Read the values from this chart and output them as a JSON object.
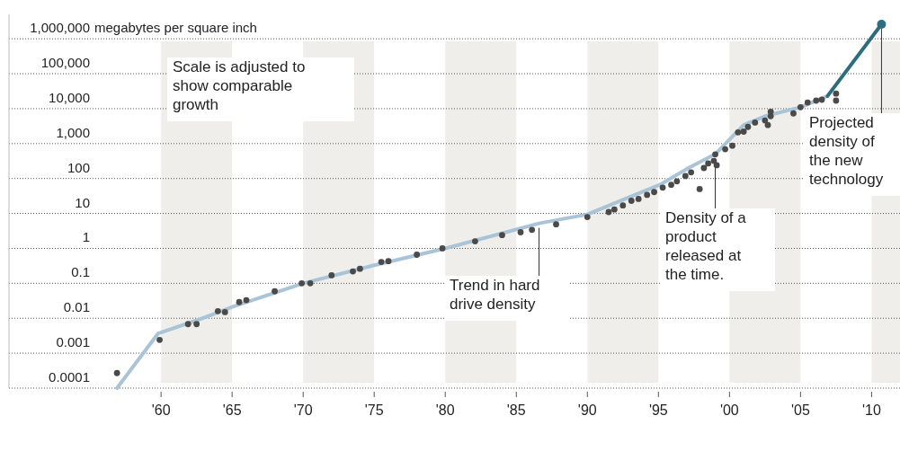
{
  "chart_data": {
    "type": "scatter",
    "ylabel": "megabytes per square inch",
    "xlim": [
      1949.3,
      2012
    ],
    "ylim": [
      0.0001,
      5000000
    ],
    "log": "y",
    "grid": "y",
    "marker": "circle",
    "xticks": [
      {
        "value": 1960,
        "label": "'60"
      },
      {
        "value": 1965,
        "label": "'65"
      },
      {
        "value": 1970,
        "label": "'70"
      },
      {
        "value": 1975,
        "label": "'75"
      },
      {
        "value": 1980,
        "label": "'80"
      },
      {
        "value": 1985,
        "label": "'85"
      },
      {
        "value": 1990,
        "label": "'90"
      },
      {
        "value": 1995,
        "label": "'95"
      },
      {
        "value": 2000,
        "label": "'00"
      },
      {
        "value": 2005,
        "label": "'05"
      },
      {
        "value": 2010,
        "label": "'10"
      }
    ],
    "yticks": [
      {
        "value": 0.0001,
        "label": "0.0001"
      },
      {
        "value": 0.001,
        "label": "0.001"
      },
      {
        "value": 0.01,
        "label": "0.01"
      },
      {
        "value": 0.1,
        "label": "0.1"
      },
      {
        "value": 1,
        "label": "1"
      },
      {
        "value": 10,
        "label": "10"
      },
      {
        "value": 100,
        "label": "100"
      },
      {
        "value": 1000,
        "label": "1,000"
      },
      {
        "value": 10000,
        "label": "10,000"
      },
      {
        "value": 100000,
        "label": "100,000"
      },
      {
        "value": 1000000,
        "label": "1,000,000"
      }
    ],
    "bands": [
      {
        "axis": "x",
        "from": 1960,
        "to": 1965,
        "color": "#efeeea"
      },
      {
        "axis": "x",
        "from": 1970,
        "to": 1975,
        "color": "#efeeea"
      },
      {
        "axis": "x",
        "from": 1980,
        "to": 1985,
        "color": "#efeeea"
      },
      {
        "axis": "x",
        "from": 1990,
        "to": 1995,
        "color": "#efeeea"
      },
      {
        "axis": "x",
        "from": 2000,
        "to": 2005,
        "color": "#efeeea"
      },
      {
        "axis": "x",
        "from": 2010,
        "to": 2012,
        "color": "#efeeea"
      }
    ],
    "series": [
      {
        "type": "line",
        "color": "#a9c4d6",
        "marker": "none",
        "x": [
          1956.9,
          1959.8,
          1962.6,
          1965,
          1970,
          1975,
          1980,
          1986.6,
          1990,
          1993,
          1995.1,
          1997.2,
          1999,
          2001,
          2002.5,
          2005,
          2006.9
        ],
        "values": [
          0.0001,
          0.0037,
          0.009,
          0.021,
          0.1,
          0.33,
          1,
          5.2,
          9.4,
          30,
          66,
          210,
          500,
          3400,
          6100,
          11000,
          23000
        ]
      },
      {
        "type": "line",
        "color": "#2c6e80",
        "marker": "none",
        "x": [
          2006.9,
          2010.7
        ],
        "values": [
          23000,
          2600000
        ]
      },
      {
        "color": "#4a4a4a",
        "x": [
          1956.9,
          1959.9,
          1961.9,
          1962.5,
          1964,
          1964.5,
          1965.5,
          1966,
          1968,
          1969.9,
          1970.5,
          1972,
          1973.5,
          1974,
          1975.5,
          1976,
          1978,
          1979.8,
          1982.1,
          1984,
          1985.3,
          1986.1,
          1987.8,
          1990,
          1991.5,
          1991.9,
          1992.5,
          1993.1,
          1993.6,
          1994.2,
          1994.7,
          1995.3,
          1995.9,
          1996.3,
          1996.9,
          1997.3,
          1997.9,
          1998.2,
          1998.5,
          1998.9,
          1999,
          1999.1,
          1999.7,
          2000.2,
          2000.6,
          2001,
          2001.3,
          2001.8,
          2002.5,
          2002.7,
          2002.9,
          2002.9,
          2004.5,
          2005,
          2005.5,
          2006.1,
          2006.5,
          2007.5,
          2007.5
        ],
        "values": [
          0.00027,
          0.0024,
          0.0068,
          0.0068,
          0.016,
          0.015,
          0.029,
          0.033,
          0.059,
          0.1,
          0.1,
          0.17,
          0.22,
          0.26,
          0.41,
          0.43,
          0.66,
          1,
          1.6,
          2.4,
          2.9,
          3.4,
          4.9,
          7.9,
          11,
          13,
          17,
          23,
          26,
          34,
          41,
          55,
          66,
          83,
          118,
          150,
          50,
          200,
          270,
          320,
          490,
          240,
          690,
          870,
          2100,
          2200,
          3000,
          4000,
          4600,
          3400,
          8200,
          6100,
          7300,
          11000,
          15000,
          17000,
          18000,
          27000,
          17000
        ]
      },
      {
        "color": "#2c6e80",
        "x": [
          2010.7
        ],
        "values": [
          2600000
        ]
      }
    ],
    "annotations": [
      "Scale is adjusted to show comparable growth",
      {
        "text": "Trend in hard drive density",
        "x": 1986.6,
        "y": 5.2
      },
      {
        "text": "Density of a product released at the time.",
        "x": 1999,
        "y": 500
      },
      {
        "text": "Projected density of the new technology",
        "x": 2010.7,
        "y": 2600000
      }
    ]
  }
}
